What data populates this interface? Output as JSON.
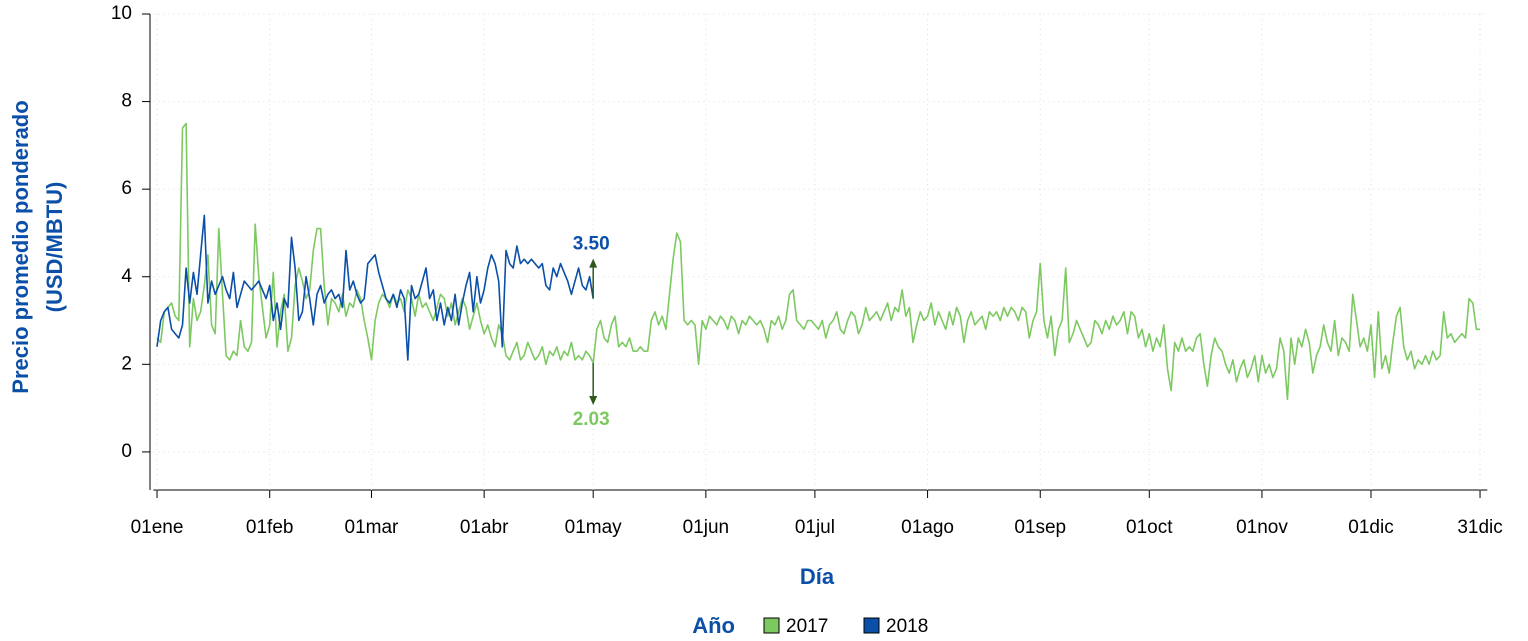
{
  "chart_data": {
    "type": "line",
    "ylabel": [
      "Precio promedio ponderado",
      "(USD/MBTU)"
    ],
    "xlabel": "Día",
    "legend_title": "Año",
    "legend": "bottom",
    "grid": true,
    "xlim": [
      0,
      367
    ],
    "ylim": [
      -0.87,
      10
    ],
    "yticks": [
      0,
      2,
      4,
      6,
      8,
      10
    ],
    "xticks": [
      {
        "value": 1,
        "label": "01ene"
      },
      {
        "value": 32,
        "label": "01feb"
      },
      {
        "value": 60,
        "label": "01mar"
      },
      {
        "value": 91,
        "label": "01abr"
      },
      {
        "value": 121,
        "label": "01may"
      },
      {
        "value": 152,
        "label": "01jun"
      },
      {
        "value": 182,
        "label": "01jul"
      },
      {
        "value": 213,
        "label": "01ago"
      },
      {
        "value": 244,
        "label": "01sep"
      },
      {
        "value": 274,
        "label": "01oct"
      },
      {
        "value": 305,
        "label": "01nov"
      },
      {
        "value": 335,
        "label": "01dic"
      },
      {
        "value": 365,
        "label": "31dic"
      }
    ],
    "series": [
      {
        "name": "2017",
        "color": "#7dc961",
        "x": [
          1,
          2,
          3,
          4,
          5,
          6,
          7,
          8,
          9,
          10,
          11,
          12,
          13,
          14,
          15,
          16,
          17,
          18,
          19,
          20,
          21,
          22,
          23,
          24,
          25,
          26,
          27,
          28,
          29,
          30,
          31,
          32,
          33,
          34,
          35,
          36,
          37,
          38,
          39,
          40,
          41,
          42,
          43,
          44,
          45,
          46,
          47,
          48,
          49,
          50,
          51,
          52,
          53,
          54,
          55,
          56,
          57,
          58,
          59,
          60,
          61,
          62,
          63,
          64,
          65,
          66,
          67,
          68,
          69,
          70,
          71,
          72,
          73,
          74,
          75,
          76,
          77,
          78,
          79,
          80,
          81,
          82,
          83,
          84,
          85,
          86,
          87,
          88,
          89,
          90,
          91,
          92,
          93,
          94,
          95,
          96,
          97,
          98,
          99,
          100,
          101,
          102,
          103,
          104,
          105,
          106,
          107,
          108,
          109,
          110,
          111,
          112,
          113,
          114,
          115,
          116,
          117,
          118,
          119,
          120,
          121,
          122,
          123,
          124,
          125,
          126,
          127,
          128,
          129,
          130,
          131,
          132,
          133,
          134,
          135,
          136,
          137,
          138,
          139,
          140,
          141,
          142,
          143,
          144,
          145,
          146,
          147,
          148,
          149,
          150,
          151,
          152,
          153,
          154,
          155,
          156,
          157,
          158,
          159,
          160,
          161,
          162,
          163,
          164,
          165,
          166,
          167,
          168,
          169,
          170,
          171,
          172,
          173,
          174,
          175,
          176,
          177,
          178,
          179,
          180,
          181,
          182,
          183,
          184,
          185,
          186,
          187,
          188,
          189,
          190,
          191,
          192,
          193,
          194,
          195,
          196,
          197,
          198,
          199,
          200,
          201,
          202,
          203,
          204,
          205,
          206,
          207,
          208,
          209,
          210,
          211,
          212,
          213,
          214,
          215,
          216,
          217,
          218,
          219,
          220,
          221,
          222,
          223,
          224,
          225,
          226,
          227,
          228,
          229,
          230,
          231,
          232,
          233,
          234,
          235,
          236,
          237,
          238,
          239,
          240,
          241,
          242,
          243,
          244,
          245,
          246,
          247,
          248,
          249,
          250,
          251,
          252,
          253,
          254,
          255,
          256,
          257,
          258,
          259,
          260,
          261,
          262,
          263,
          264,
          265,
          266,
          267,
          268,
          269,
          270,
          271,
          272,
          273,
          274,
          275,
          276,
          277,
          278,
          279,
          280,
          281,
          282,
          283,
          284,
          285,
          286,
          287,
          288,
          289,
          290,
          291,
          292,
          293,
          294,
          295,
          296,
          297,
          298,
          299,
          300,
          301,
          302,
          303,
          304,
          305,
          306,
          307,
          308,
          309,
          310,
          311,
          312,
          313,
          314,
          315,
          316,
          317,
          318,
          319,
          320,
          321,
          322,
          323,
          324,
          325,
          326,
          327,
          328,
          329,
          330,
          331,
          332,
          333,
          334,
          335,
          336,
          337,
          338,
          339,
          340,
          341,
          342,
          343,
          344,
          345,
          346,
          347,
          348,
          349,
          350,
          351,
          352,
          353,
          354,
          355,
          356,
          357,
          358,
          359,
          360,
          361,
          362,
          363,
          364,
          365
        ],
        "values": [
          2.6,
          2.5,
          3.2,
          3.3,
          3.4,
          3.1,
          3.0,
          7.4,
          7.5,
          2.4,
          3.5,
          3.0,
          3.2,
          3.8,
          4.5,
          2.9,
          2.7,
          5.1,
          3.6,
          2.2,
          2.1,
          2.3,
          2.2,
          3.0,
          2.4,
          2.3,
          2.5,
          5.2,
          4.0,
          3.3,
          2.6,
          2.9,
          4.1,
          2.4,
          3.2,
          3.6,
          2.3,
          2.6,
          3.8,
          4.2,
          3.9,
          3.5,
          3.7,
          4.6,
          5.1,
          5.1,
          3.8,
          2.9,
          3.5,
          3.4,
          3.2,
          3.6,
          3.1,
          3.4,
          3.3,
          3.7,
          3.5,
          3.0,
          2.6,
          2.1,
          3.0,
          3.4,
          3.6,
          3.5,
          3.3,
          3.6,
          3.4,
          3.5,
          3.2,
          3.7,
          3.5,
          3.1,
          3.6,
          3.3,
          3.4,
          3.2,
          3.0,
          3.3,
          3.6,
          3.5,
          3.1,
          3.4,
          2.9,
          3.2,
          3.5,
          3.3,
          2.8,
          3.1,
          3.4,
          3.0,
          2.7,
          2.9,
          2.6,
          2.4,
          2.9,
          2.7,
          2.2,
          2.1,
          2.3,
          2.5,
          2.1,
          2.2,
          2.5,
          2.3,
          2.1,
          2.2,
          2.4,
          2.0,
          2.3,
          2.2,
          2.4,
          2.1,
          2.3,
          2.2,
          2.5,
          2.1,
          2.2,
          2.1,
          2.3,
          2.2,
          2.03,
          2.8,
          3.0,
          2.6,
          2.5,
          2.9,
          3.1,
          2.4,
          2.5,
          2.4,
          2.6,
          2.3,
          2.3,
          2.4,
          2.3,
          2.3,
          3.0,
          3.2,
          2.9,
          3.1,
          2.8,
          3.6,
          4.4,
          5.0,
          4.8,
          3.0,
          2.9,
          3.0,
          2.9,
          2.0,
          3.0,
          2.8,
          3.1,
          3.0,
          2.9,
          3.1,
          3.0,
          2.8,
          3.1,
          3.0,
          2.7,
          3.0,
          2.9,
          3.1,
          3.0,
          2.9,
          3.0,
          2.8,
          2.5,
          3.0,
          2.9,
          3.1,
          2.8,
          3.0,
          3.6,
          3.7,
          3.0,
          2.9,
          2.8,
          3.0,
          3.0,
          2.9,
          2.8,
          3.0,
          2.6,
          2.9,
          3.0,
          3.2,
          2.8,
          2.7,
          3.0,
          3.2,
          3.1,
          2.7,
          2.9,
          3.3,
          3.0,
          3.1,
          3.2,
          3.0,
          3.2,
          3.4,
          3.0,
          3.3,
          3.2,
          3.7,
          3.1,
          3.3,
          2.5,
          2.9,
          3.2,
          3.0,
          3.1,
          3.4,
          2.9,
          3.2,
          3.0,
          2.8,
          3.2,
          2.9,
          3.3,
          3.1,
          2.5,
          3.0,
          3.2,
          2.9,
          3.0,
          3.1,
          2.8,
          3.2,
          3.1,
          3.2,
          3.0,
          3.3,
          3.1,
          3.3,
          3.2,
          3.0,
          3.3,
          3.2,
          2.6,
          3.0,
          3.2,
          4.3,
          3.0,
          2.6,
          3.1,
          2.2,
          2.8,
          3.0,
          4.2,
          2.5,
          2.7,
          3.0,
          2.8,
          2.6,
          2.4,
          2.5,
          3.0,
          2.9,
          2.7,
          3.0,
          2.8,
          3.1,
          2.9,
          3.0,
          3.2,
          2.7,
          3.2,
          3.1,
          2.6,
          2.8,
          2.4,
          2.7,
          2.3,
          2.6,
          2.4,
          2.9,
          1.9,
          1.4,
          2.5,
          2.3,
          2.6,
          2.3,
          2.4,
          2.3,
          2.6,
          2.7,
          2.0,
          1.5,
          2.2,
          2.6,
          2.4,
          2.3,
          2.0,
          1.8,
          2.1,
          1.6,
          1.9,
          2.1,
          1.7,
          1.9,
          2.2,
          1.6,
          2.2,
          1.8,
          2.0,
          1.7,
          1.9,
          2.6,
          2.3,
          1.2,
          2.6,
          2.0,
          2.6,
          2.4,
          2.8,
          2.5,
          1.8,
          2.2,
          2.4,
          2.9,
          2.5,
          2.3,
          3.0,
          2.2,
          2.6,
          2.5,
          2.3,
          3.6,
          3.0,
          2.4,
          2.6,
          2.3,
          2.9,
          1.7,
          3.2,
          1.9,
          2.2,
          1.8,
          2.5,
          3.1,
          3.3,
          2.4,
          2.1,
          2.3,
          1.9,
          2.1,
          2.0,
          2.2,
          2.0,
          2.3,
          2.1,
          2.2,
          3.2,
          2.6,
          2.7,
          2.5,
          2.6,
          2.7,
          2.6,
          3.5,
          3.4,
          2.8,
          2.8
        ]
      },
      {
        "name": "2018",
        "color": "#0b4fa8",
        "x": [
          1,
          2,
          3,
          4,
          5,
          6,
          7,
          8,
          9,
          10,
          11,
          12,
          13,
          14,
          15,
          16,
          17,
          18,
          19,
          20,
          21,
          22,
          23,
          24,
          25,
          26,
          27,
          28,
          29,
          30,
          31,
          32,
          33,
          34,
          35,
          36,
          37,
          38,
          39,
          40,
          41,
          42,
          43,
          44,
          45,
          46,
          47,
          48,
          49,
          50,
          51,
          52,
          53,
          54,
          55,
          56,
          57,
          58,
          59,
          60,
          61,
          62,
          63,
          64,
          65,
          66,
          67,
          68,
          69,
          70,
          71,
          72,
          73,
          74,
          75,
          76,
          77,
          78,
          79,
          80,
          81,
          82,
          83,
          84,
          85,
          86,
          87,
          88,
          89,
          90,
          91,
          92,
          93,
          94,
          95,
          96,
          97,
          98,
          99,
          100,
          101,
          102,
          103,
          104,
          105,
          106,
          107,
          108,
          109,
          110,
          111,
          112,
          113,
          114,
          115,
          116,
          117,
          118,
          119,
          120,
          121
        ],
        "values": [
          2.4,
          3.0,
          3.2,
          3.3,
          2.8,
          2.7,
          2.6,
          2.9,
          4.2,
          3.4,
          4.1,
          3.6,
          4.5,
          5.4,
          3.4,
          3.9,
          3.6,
          3.8,
          4.0,
          3.7,
          3.5,
          4.1,
          3.3,
          3.6,
          3.9,
          3.8,
          3.7,
          3.8,
          3.9,
          3.7,
          3.5,
          3.8,
          3.0,
          3.4,
          2.8,
          3.5,
          3.3,
          4.9,
          4.2,
          3.0,
          3.2,
          4.0,
          3.5,
          2.9,
          3.6,
          3.8,
          3.4,
          3.6,
          3.7,
          3.5,
          3.6,
          3.3,
          4.6,
          3.7,
          3.9,
          3.6,
          3.4,
          3.5,
          4.3,
          4.4,
          4.5,
          4.1,
          3.8,
          3.5,
          3.4,
          3.6,
          3.3,
          3.7,
          3.5,
          2.1,
          3.8,
          3.5,
          3.6,
          3.9,
          4.2,
          3.5,
          3.7,
          3.0,
          3.4,
          2.9,
          3.3,
          3.0,
          3.6,
          2.9,
          3.4,
          3.8,
          4.1,
          3.2,
          4.0,
          3.4,
          3.7,
          4.2,
          4.5,
          4.3,
          3.9,
          2.4,
          4.6,
          4.3,
          4.2,
          4.7,
          4.3,
          4.4,
          4.3,
          4.4,
          4.3,
          4.2,
          4.3,
          3.8,
          3.7,
          4.2,
          4.0,
          4.3,
          4.1,
          3.9,
          3.6,
          3.9,
          4.2,
          3.8,
          3.7,
          4.0,
          3.5
        ]
      }
    ],
    "annotations": [
      {
        "text": "3.50",
        "x": 121,
        "y": 3.5,
        "color": "#0b4fa8",
        "position": "above"
      },
      {
        "text": "2.03",
        "x": 121,
        "y": 2.03,
        "color": "#7dc961",
        "position": "below"
      }
    ]
  }
}
